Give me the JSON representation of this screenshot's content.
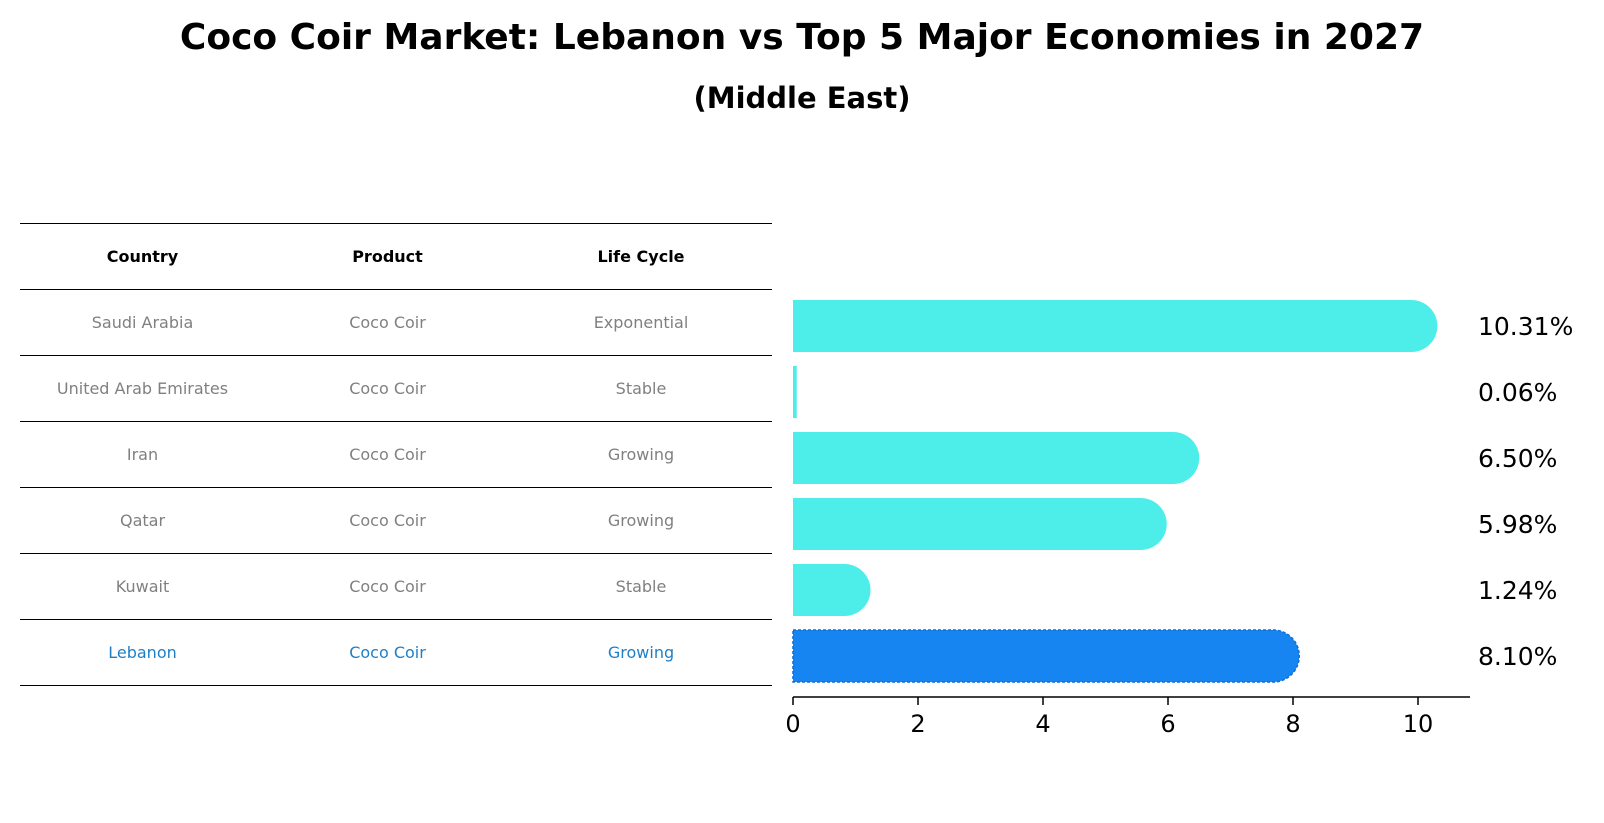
{
  "title": "Coco Coir Market: Lebanon vs Top 5 Major Economies in 2027",
  "subtitle": "(Middle East)",
  "table": {
    "headers": [
      "Country",
      "Product",
      "Life Cycle"
    ],
    "rows": [
      [
        "Saudi Arabia",
        "Coco Coir",
        "Exponential"
      ],
      [
        "United Arab Emirates",
        "Coco Coir",
        "Stable"
      ],
      [
        "Iran",
        "Coco Coir",
        "Growing"
      ],
      [
        "Qatar",
        "Coco Coir",
        "Growing"
      ],
      [
        "Kuwait",
        "Coco Coir",
        "Stable"
      ],
      [
        "Lebanon",
        "Coco Coir",
        "Growing"
      ]
    ],
    "highlight_row": "Lebanon"
  },
  "colors": {
    "bar": "#4deeea",
    "highlight_bar": "#1684f1",
    "highlight_text": "#1e7fc8",
    "row_text": "#808080"
  },
  "chart_data": {
    "type": "bar",
    "orientation": "horizontal",
    "categories": [
      "Saudi Arabia",
      "United Arab Emirates",
      "Iran",
      "Qatar",
      "Kuwait",
      "Lebanon"
    ],
    "values": [
      10.31,
      0.06,
      6.5,
      5.98,
      1.24,
      8.1
    ],
    "value_labels": [
      "10.31%",
      "0.06%",
      "6.50%",
      "5.98%",
      "1.24%",
      "8.10%"
    ],
    "xlim": [
      0,
      10.8
    ],
    "xticks": [
      0,
      2,
      4,
      6,
      8,
      10
    ],
    "highlight": "Lebanon",
    "grid": false
  }
}
